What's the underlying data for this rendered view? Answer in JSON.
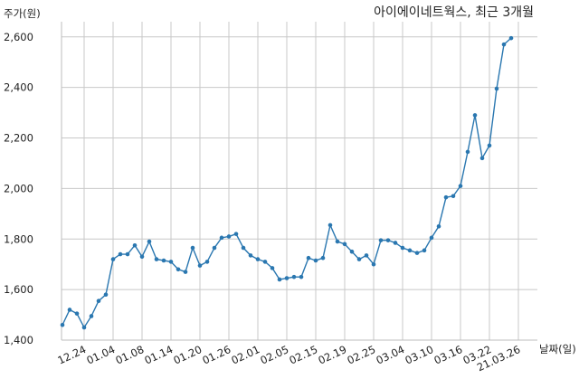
{
  "chart_data": {
    "type": "line",
    "title": "아이에이네트웍스, 최근 3개월",
    "ylabel": "주가(원)",
    "xlabel": "날짜(일)",
    "ylim": [
      1400,
      2660
    ],
    "yticks": [
      1400,
      1600,
      1800,
      2000,
      2200,
      2400,
      2600
    ],
    "ytick_labels": [
      "1,400",
      "1,600",
      "1,800",
      "2,000",
      "2,200",
      "2,400",
      "2,600"
    ],
    "x_tick_labels": [
      "12.24",
      "01.04",
      "01.08",
      "01.14",
      "01.20",
      "01.26",
      "02.01",
      "02.05",
      "02.15",
      "02.19",
      "02.25",
      "03.04",
      "03.10",
      "03.16",
      "03.22",
      "21.03.26"
    ],
    "x_tick_index": [
      3,
      7,
      11,
      15,
      19,
      23,
      27,
      31,
      35,
      39,
      43,
      47,
      51,
      55,
      59,
      63
    ],
    "grid": true,
    "color": "#2a77b0",
    "series": [
      {
        "values": [
          1460,
          1520,
          1505,
          1450,
          1495,
          1555,
          1580,
          1720,
          1740,
          1740,
          1775,
          1730,
          1790,
          1720,
          1715,
          1710,
          1680,
          1670,
          1765,
          1695,
          1710,
          1765,
          1805,
          1810,
          1820,
          1765,
          1735,
          1720,
          1710,
          1685,
          1640,
          1645,
          1650,
          1650,
          1725,
          1715,
          1725,
          1855,
          1790,
          1780,
          1750,
          1720,
          1735,
          1700,
          1795,
          1795,
          1785,
          1765,
          1755,
          1745,
          1755,
          1805,
          1850,
          1965,
          1970,
          2010,
          2145,
          2290,
          2120,
          2170,
          2395,
          2570,
          2595
        ]
      }
    ]
  }
}
